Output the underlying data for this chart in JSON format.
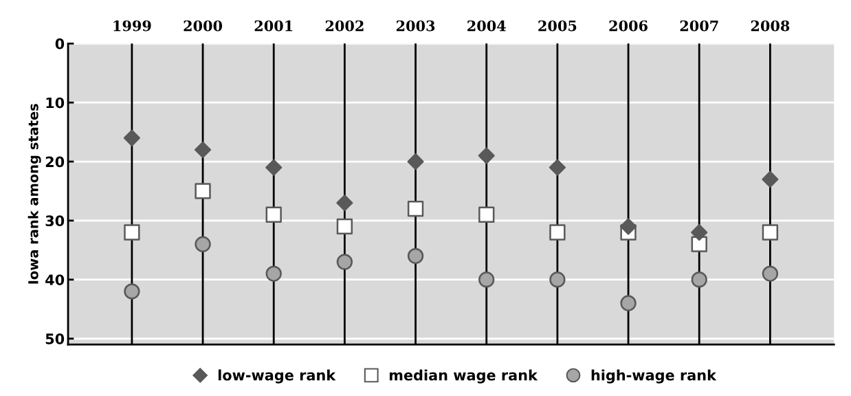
{
  "chart_data": {
    "type": "scatter",
    "ylabel": "Iowa rank among states",
    "categories": [
      "1999",
      "2000",
      "2001",
      "2002",
      "2003",
      "2004",
      "2005",
      "2006",
      "2007",
      "2008"
    ],
    "series": [
      {
        "name": "low-wage rank",
        "color": "#595959",
        "marker": "diamond",
        "values": [
          16,
          18,
          21,
          27,
          20,
          19,
          21,
          31,
          32,
          23
        ]
      },
      {
        "name": "median wage rank",
        "color": "#ffffff",
        "marker": "square",
        "values": [
          32,
          25,
          29,
          31,
          28,
          29,
          32,
          32,
          34,
          32
        ]
      },
      {
        "name": "high-wage rank",
        "color": "#a6a6a6",
        "marker": "circle",
        "values": [
          42,
          34,
          39,
          37,
          36,
          40,
          40,
          44,
          40,
          39
        ]
      }
    ],
    "ylim": [
      51,
      0
    ],
    "yticks": [
      0,
      10,
      20,
      30,
      40,
      50
    ],
    "grid": true,
    "legend": "bottom"
  }
}
